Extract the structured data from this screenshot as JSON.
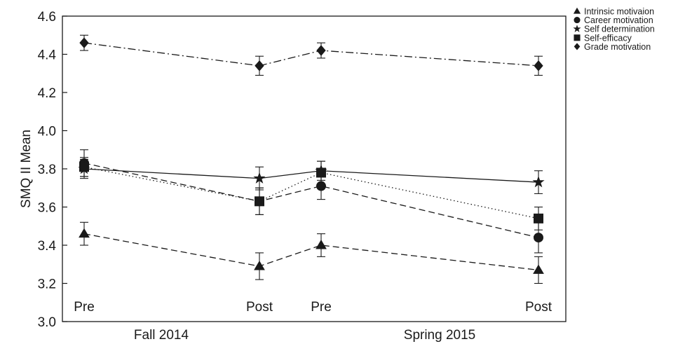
{
  "chart_data": {
    "type": "line",
    "ylabel": "SMQ II Mean",
    "ylim": [
      3.0,
      4.6
    ],
    "yticks": [
      "3.0",
      "3.2",
      "3.4",
      "3.6",
      "3.8",
      "4.0",
      "4.2",
      "4.4",
      "4.6"
    ],
    "groups": [
      "Fall 2014",
      "Spring 2015"
    ],
    "x": [
      "Pre",
      "Post",
      "Pre",
      "Post"
    ],
    "legend_position": "top-right, outside",
    "grid": false,
    "series": [
      {
        "name": "Intrinsic motivaion",
        "marker": "triangle",
        "line_style": "dashed",
        "values": [
          3.46,
          3.29,
          3.4,
          3.27
        ],
        "error": [
          0.06,
          0.07,
          0.06,
          0.07
        ]
      },
      {
        "name": "Career motivation",
        "marker": "circle",
        "line_style": "dashed",
        "values": [
          3.83,
          3.63,
          3.71,
          3.44
        ],
        "error": [
          0.07,
          0.07,
          0.07,
          0.08
        ]
      },
      {
        "name": "Self determination",
        "marker": "star",
        "line_style": "solid",
        "values": [
          3.8,
          3.75,
          3.79,
          3.73
        ],
        "error": [
          0.05,
          0.06,
          0.05,
          0.06
        ]
      },
      {
        "name": "Self-efficacy",
        "marker": "square",
        "line_style": "dotted",
        "values": [
          3.81,
          3.63,
          3.78,
          3.54
        ],
        "error": [
          0.05,
          0.07,
          0.06,
          0.06
        ]
      },
      {
        "name": "Grade motivation",
        "marker": "diamond",
        "line_style": "dash-dot",
        "values": [
          4.46,
          4.34,
          4.42,
          4.34
        ],
        "error": [
          0.04,
          0.05,
          0.04,
          0.05
        ]
      }
    ]
  }
}
